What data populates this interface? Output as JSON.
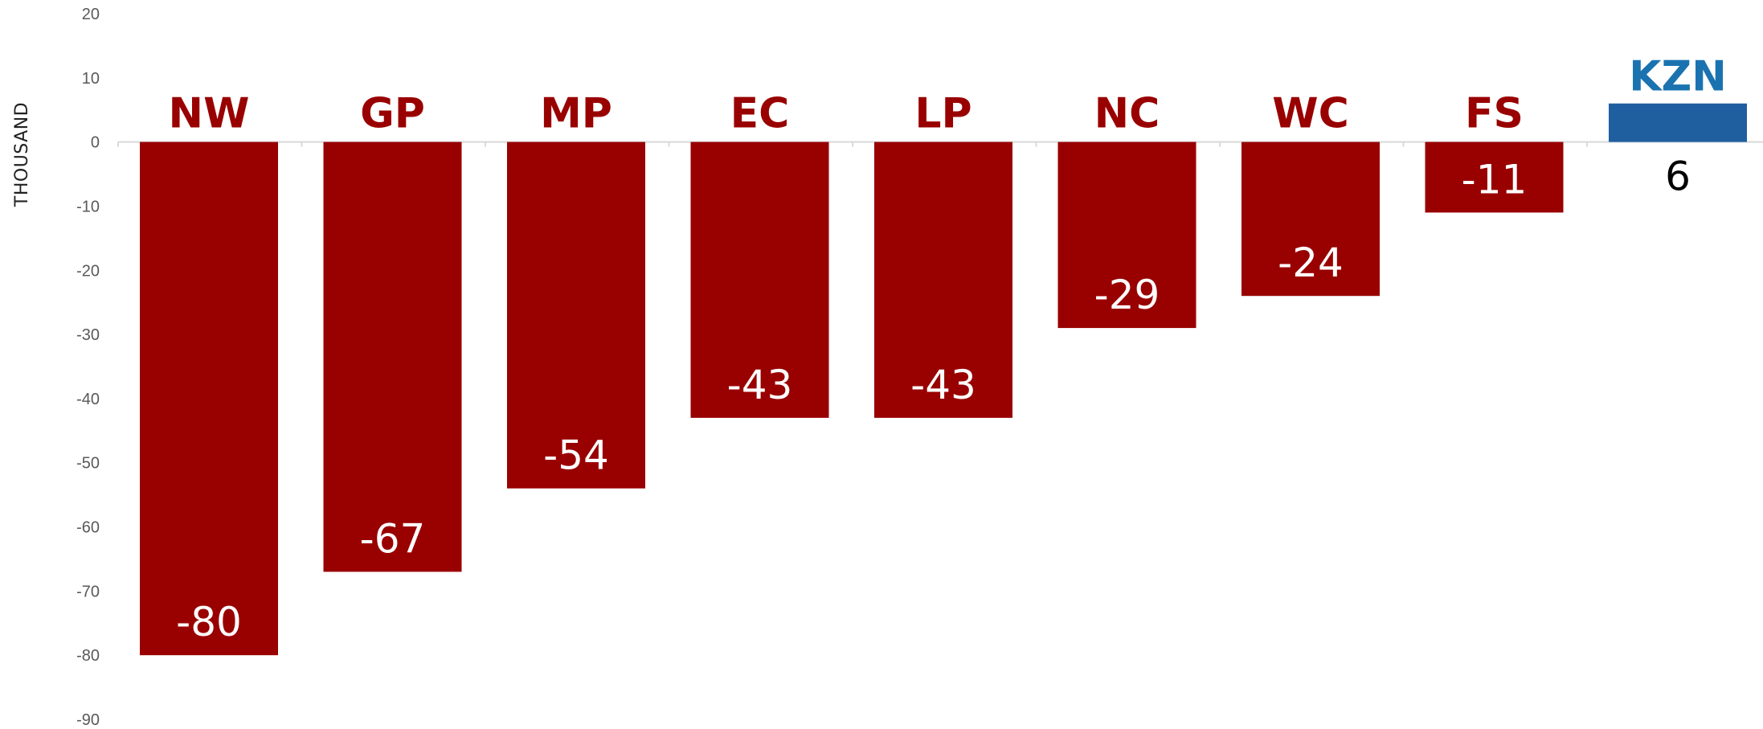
{
  "chart_data": {
    "type": "bar",
    "title": "",
    "xlabel": "",
    "ylabel": "THOUSAND",
    "categories": [
      "NW",
      "GP",
      "MP",
      "EC",
      "LP",
      "NC",
      "WC",
      "FS",
      "KZN"
    ],
    "values": [
      -80,
      -67,
      -54,
      -43,
      -43,
      -29,
      -24,
      -11,
      6
    ],
    "value_labels": [
      "-80",
      "-67",
      "-54",
      "-43",
      "-43",
      "-29",
      "-24",
      "-11",
      "6"
    ],
    "ylim": [
      -90,
      20
    ],
    "yticks": [
      "20",
      "10",
      "0",
      "-10",
      "-20",
      "-30",
      "-40",
      "-50",
      "-60",
      "-70",
      "-80",
      "-90"
    ],
    "grid": false,
    "legend": "none",
    "colors": {
      "negative_bar": "#990000",
      "positive_bar": "#1F5FA0",
      "negative_category_label": "#990000",
      "positive_category_label": "#1A73B0",
      "value_label_on_bar": "#ffffff",
      "value_label_outside": "#000000",
      "axis_line": "#d9d9d9"
    }
  }
}
